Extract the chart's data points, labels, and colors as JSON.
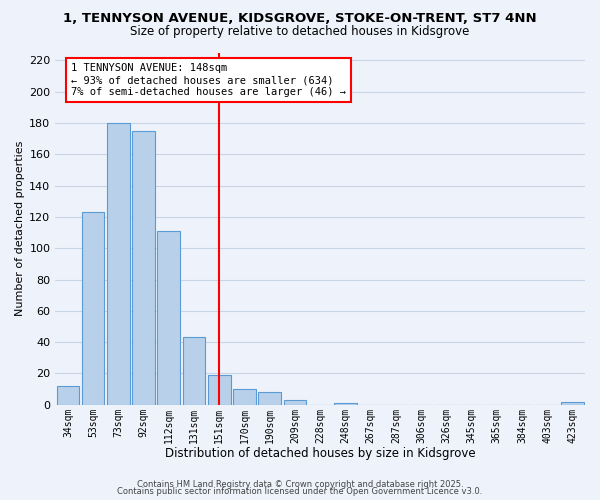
{
  "title_line1": "1, TENNYSON AVENUE, KIDSGROVE, STOKE-ON-TRENT, ST7 4NN",
  "title_line2": "Size of property relative to detached houses in Kidsgrove",
  "xlabel": "Distribution of detached houses by size in Kidsgrove",
  "ylabel": "Number of detached properties",
  "bar_labels": [
    "34sqm",
    "53sqm",
    "73sqm",
    "92sqm",
    "112sqm",
    "131sqm",
    "151sqm",
    "170sqm",
    "190sqm",
    "209sqm",
    "228sqm",
    "248sqm",
    "267sqm",
    "287sqm",
    "306sqm",
    "326sqm",
    "345sqm",
    "365sqm",
    "384sqm",
    "403sqm",
    "423sqm"
  ],
  "bar_values": [
    12,
    123,
    180,
    175,
    111,
    43,
    19,
    10,
    8,
    3,
    0,
    1,
    0,
    0,
    0,
    0,
    0,
    0,
    0,
    0,
    2
  ],
  "bar_color": "#b8d0ea",
  "bar_edge_color": "#5b9bd5",
  "vline_x": 6.0,
  "vline_color": "red",
  "annotation_title": "1 TENNYSON AVENUE: 148sqm",
  "annotation_line2": "← 93% of detached houses are smaller (634)",
  "annotation_line3": "7% of semi-detached houses are larger (46) →",
  "annotation_box_color": "white",
  "annotation_box_edgecolor": "red",
  "ylim": [
    0,
    225
  ],
  "yticks": [
    0,
    20,
    40,
    60,
    80,
    100,
    120,
    140,
    160,
    180,
    200,
    220
  ],
  "footer_line1": "Contains HM Land Registry data © Crown copyright and database right 2025.",
  "footer_line2": "Contains public sector information licensed under the Open Government Licence v3.0.",
  "bg_color": "#eef2fb",
  "grid_color": "#c8d4e8"
}
